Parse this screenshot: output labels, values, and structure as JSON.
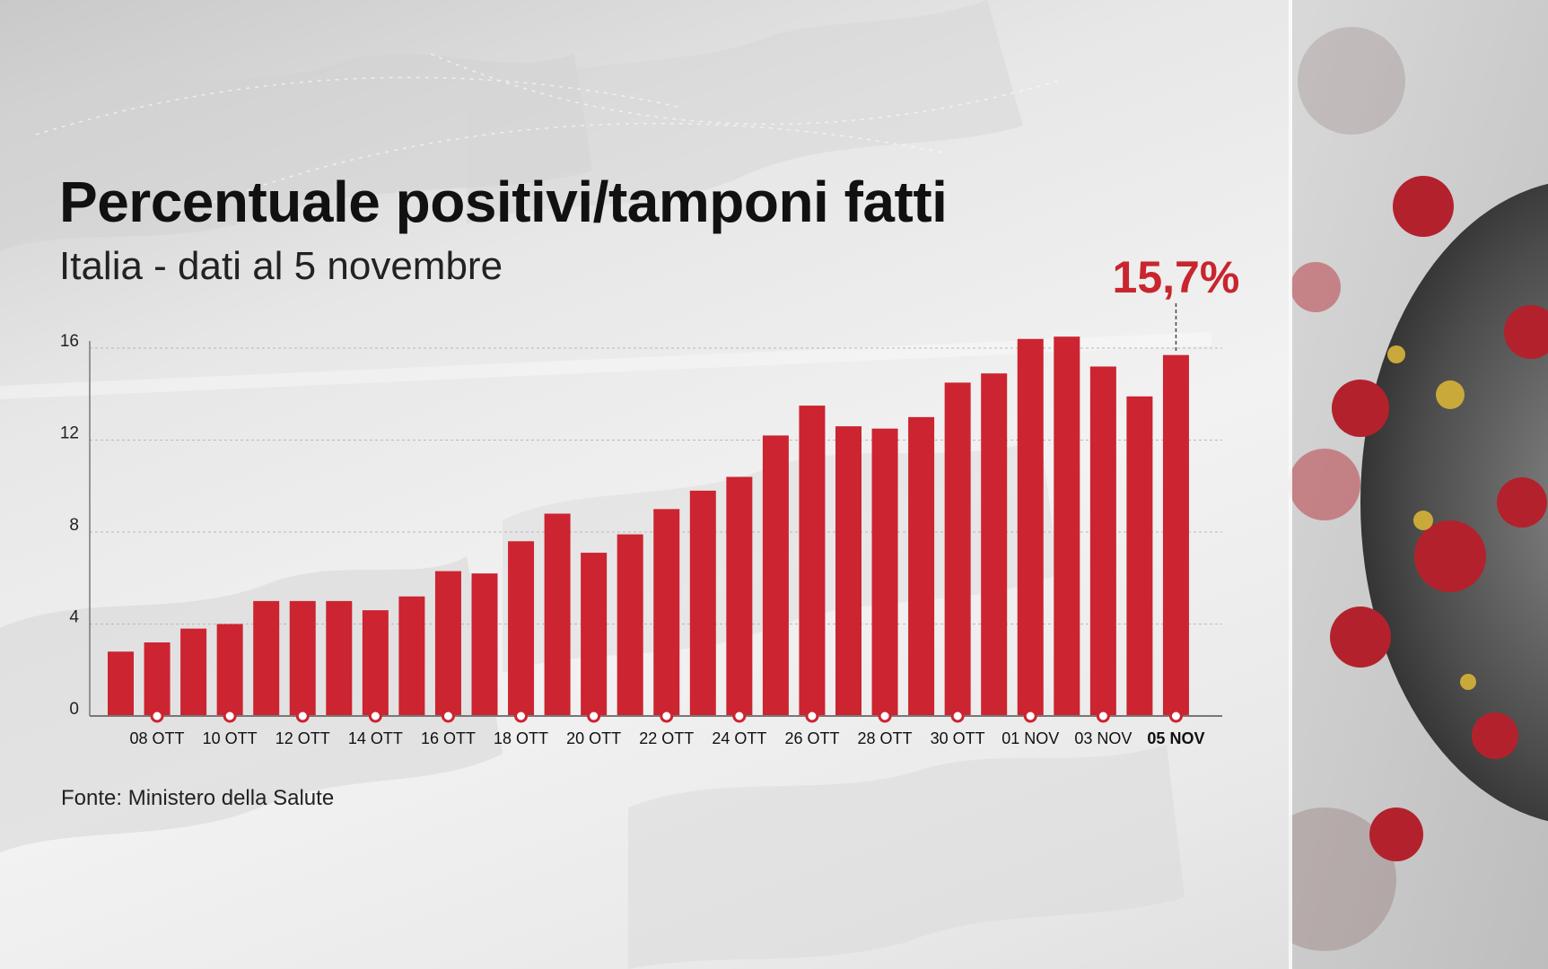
{
  "title": "Percentuale positivi/tamponi fatti",
  "subtitle": "Italia - dati al 5 novembre",
  "source": "Fonte: Ministero della Salute",
  "colors": {
    "bar": "#cc2430",
    "highlight_text": "#c8252f",
    "axis": "#777777",
    "grid": "#b8b8b8"
  },
  "chart_data": {
    "type": "bar",
    "categories": [
      "07 OTT",
      "08 OTT",
      "09 OTT",
      "10 OTT",
      "11 OTT",
      "12 OTT",
      "13 OTT",
      "14 OTT",
      "15 OTT",
      "16 OTT",
      "17 OTT",
      "18 OTT",
      "19 OTT",
      "20 OTT",
      "21 OTT",
      "22 OTT",
      "23 OTT",
      "24 OTT",
      "25 OTT",
      "26 OTT",
      "27 OTT",
      "28 OTT",
      "29 OTT",
      "30 OTT",
      "31 OTT",
      "01 NOV",
      "02 NOV",
      "03 NOV",
      "04 NOV",
      "05 NOV"
    ],
    "values": [
      2.8,
      3.2,
      3.8,
      4.0,
      5.0,
      5.0,
      5.0,
      4.6,
      5.2,
      6.3,
      6.2,
      7.6,
      8.8,
      7.1,
      7.9,
      9.0,
      9.8,
      10.4,
      12.2,
      13.5,
      12.6,
      12.5,
      13.0,
      14.5,
      14.9,
      16.4,
      16.5,
      15.2,
      13.9,
      15.7
    ],
    "tick_labels": [
      "08 OTT",
      "10 OTT",
      "12 OTT",
      "14 OTT",
      "16 OTT",
      "18 OTT",
      "20 OTT",
      "22 OTT",
      "24 OTT",
      "26 OTT",
      "28 OTT",
      "30 OTT",
      "01 NOV",
      "03 NOV",
      "05 NOV"
    ],
    "highlight_tick": "05 NOV",
    "yticks": [
      0,
      4,
      8,
      12,
      16
    ],
    "ylim": [
      0,
      16
    ],
    "grid": true,
    "annotation": {
      "label": "15,7%",
      "category": "05 NOV"
    },
    "xlabel": "",
    "ylabel": ""
  }
}
